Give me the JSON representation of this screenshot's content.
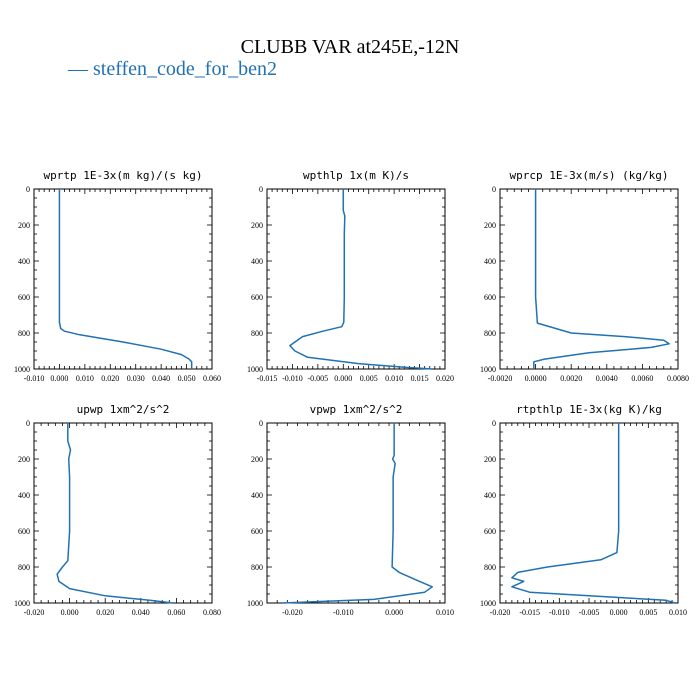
{
  "title": "CLUBB VAR at245E,-12N",
  "legend": {
    "line_glyph": "—",
    "label": "steffen_code_for_ben2",
    "color": "#2171b5"
  },
  "chart_data": [
    {
      "type": "line",
      "title": "wprtp   1E-3x(m kg)/(s kg)",
      "xlim": [
        -0.01,
        0.06
      ],
      "xticks": [
        "-0.010",
        "0.000",
        "0.010",
        "0.020",
        "0.030",
        "0.040",
        "0.050",
        "0.060"
      ],
      "ylim": [
        0,
        1000
      ],
      "y_inverted": true,
      "yticks": [
        "0",
        "200",
        "400",
        "600",
        "800",
        "1000"
      ],
      "series": [
        {
          "name": "steffen_code_for_ben2",
          "x": [
            0,
            0,
            0,
            0,
            0,
            0.0005,
            0.002,
            0.008,
            0.025,
            0.04,
            0.048,
            0.051,
            0.052,
            0.052
          ],
          "y": [
            0,
            200,
            400,
            600,
            740,
            775,
            790,
            810,
            850,
            890,
            920,
            945,
            960,
            1000
          ]
        }
      ]
    },
    {
      "type": "line",
      "title": "wpthlp   1x(m K)/s",
      "xlim": [
        -0.015,
        0.02
      ],
      "xticks": [
        "-0.015",
        "-0.010",
        "-0.005",
        "0.000",
        "0.005",
        "0.010",
        "0.015",
        "0.020"
      ],
      "ylim": [
        0,
        1000
      ],
      "y_inverted": true,
      "yticks": [
        "0",
        "200",
        "400",
        "600",
        "800",
        "1000"
      ],
      "series": [
        {
          "name": "steffen_code_for_ben2",
          "x": [
            0,
            0,
            0.0003,
            0.0002,
            0.0002,
            0.0002,
            0.0001,
            -0.0003,
            -0.004,
            -0.008,
            -0.0095,
            -0.0105,
            -0.0095,
            -0.007,
            0.003,
            0.012,
            0.0175
          ],
          "y": [
            0,
            120,
            150,
            250,
            400,
            600,
            740,
            765,
            790,
            820,
            850,
            870,
            900,
            935,
            970,
            990,
            1000
          ]
        }
      ]
    },
    {
      "type": "line",
      "title": "wprcp   1E-3x(m/s) (kg/kg)",
      "xlim": [
        -0.002,
        0.008
      ],
      "xticks": [
        "-0.0020",
        "0.0000",
        "0.0020",
        "0.0040",
        "0.0060",
        "0.0080"
      ],
      "ylim": [
        0,
        1000
      ],
      "y_inverted": true,
      "yticks": [
        "0",
        "200",
        "400",
        "600",
        "800",
        "1000"
      ],
      "series": [
        {
          "name": "steffen_code_for_ben2",
          "x": [
            0,
            0,
            0,
            0,
            0.0001,
            0.002,
            0.005,
            0.0072,
            0.0075,
            0.0065,
            0.003,
            0.0005,
            -0.0001,
            -0.0001,
            -0.0001
          ],
          "y": [
            0,
            200,
            400,
            600,
            745,
            800,
            820,
            840,
            860,
            880,
            910,
            945,
            960,
            980,
            1000
          ]
        }
      ]
    },
    {
      "type": "line",
      "title": "upwp   1xm^2/s^2",
      "xlim": [
        -0.02,
        0.08
      ],
      "xticks": [
        "-0.020",
        "0.000",
        "0.020",
        "0.040",
        "0.060",
        "0.080"
      ],
      "ylim": [
        0,
        1000
      ],
      "y_inverted": true,
      "yticks": [
        "0",
        "200",
        "400",
        "600",
        "800",
        "1000"
      ],
      "series": [
        {
          "name": "steffen_code_for_ben2",
          "x": [
            -0.001,
            -0.001,
            0.0005,
            -0.0005,
            0,
            0,
            0,
            -0.001,
            -0.004,
            -0.007,
            -0.006,
            0,
            0.02,
            0.045,
            0.058
          ],
          "y": [
            0,
            100,
            150,
            200,
            300,
            400,
            600,
            765,
            800,
            840,
            880,
            920,
            960,
            985,
            1000
          ]
        }
      ]
    },
    {
      "type": "line",
      "title": "vpwp   1xm^2/s^2",
      "xlim": [
        -0.025,
        0.01
      ],
      "xticks": [
        "-0.020",
        "-0.010",
        "0.000",
        "0.010"
      ],
      "ylim": [
        0,
        1000
      ],
      "y_inverted": true,
      "yticks": [
        "0",
        "200",
        "400",
        "600",
        "800",
        "1000"
      ],
      "series": [
        {
          "name": "steffen_code_for_ben2",
          "x": [
            0,
            0,
            0,
            -0.0003,
            0.0002,
            -0.0002,
            -0.0002,
            -0.0002,
            -0.0004,
            0.001,
            0.005,
            0.0075,
            0.006,
            -0.004,
            -0.022
          ],
          "y": [
            0,
            100,
            180,
            200,
            225,
            300,
            400,
            600,
            800,
            830,
            880,
            910,
            940,
            980,
            1000
          ]
        }
      ]
    },
    {
      "type": "line",
      "title": "rtpthlp   1E-3x(kg K)/kg",
      "xlim": [
        -0.02,
        0.01
      ],
      "xticks": [
        "-0.020",
        "-0.015",
        "-0.010",
        "-0.005",
        "0.000",
        "0.005",
        "0.010"
      ],
      "ylim": [
        0,
        1000
      ],
      "y_inverted": true,
      "yticks": [
        "0",
        "200",
        "400",
        "600",
        "800",
        "1000"
      ],
      "series": [
        {
          "name": "steffen_code_for_ben2",
          "x": [
            0,
            0,
            0,
            0,
            -0.0003,
            -0.003,
            -0.012,
            -0.017,
            -0.018,
            -0.016,
            -0.018,
            -0.015,
            -0.005,
            0.008,
            0.0095
          ],
          "y": [
            0,
            200,
            400,
            600,
            720,
            760,
            800,
            830,
            860,
            880,
            910,
            940,
            960,
            985,
            1000
          ]
        }
      ]
    }
  ]
}
